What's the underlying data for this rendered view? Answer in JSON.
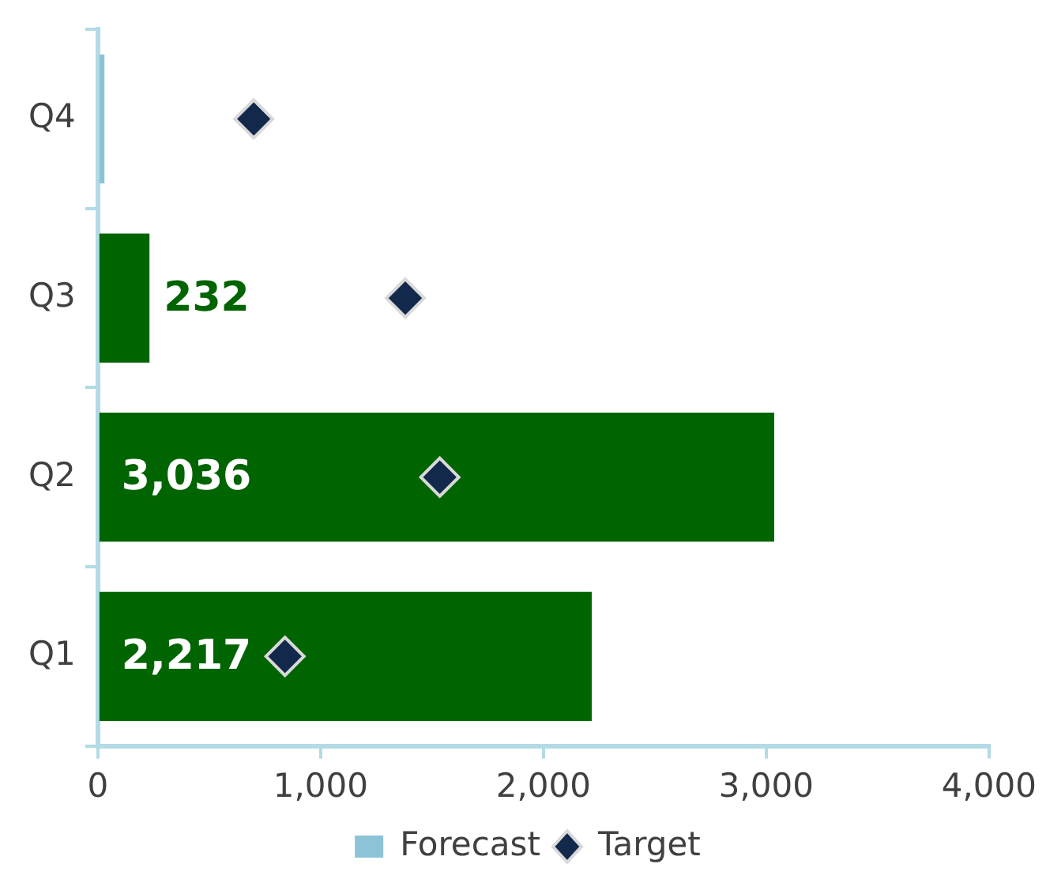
{
  "chart_data": {
    "type": "bar",
    "orientation": "horizontal",
    "categories": [
      "Q4",
      "Q3",
      "Q2",
      "Q1"
    ],
    "series": [
      {
        "color": "#006400",
        "values": [
          null,
          232,
          3036,
          2217
        ],
        "value_labels": [
          null,
          "232",
          "3,036",
          "2,217"
        ]
      },
      {
        "name": "Forecast",
        "color": "#8cc3d6",
        "values": [
          30,
          null,
          null,
          null
        ]
      },
      {
        "name": "Target",
        "type": "scatter",
        "marker": "diamond",
        "color": "#13294b",
        "values": [
          700,
          1380,
          1535,
          840
        ]
      }
    ],
    "xlim": [
      0,
      4000
    ],
    "xticks": [
      0,
      {
        "value": 1000,
        "label": "1,000"
      },
      {
        "value": 2000,
        "label": "2,000"
      },
      {
        "value": 3000,
        "label": "3,000"
      },
      {
        "value": 4000,
        "label": "4,000"
      }
    ],
    "legend": "bottom"
  }
}
